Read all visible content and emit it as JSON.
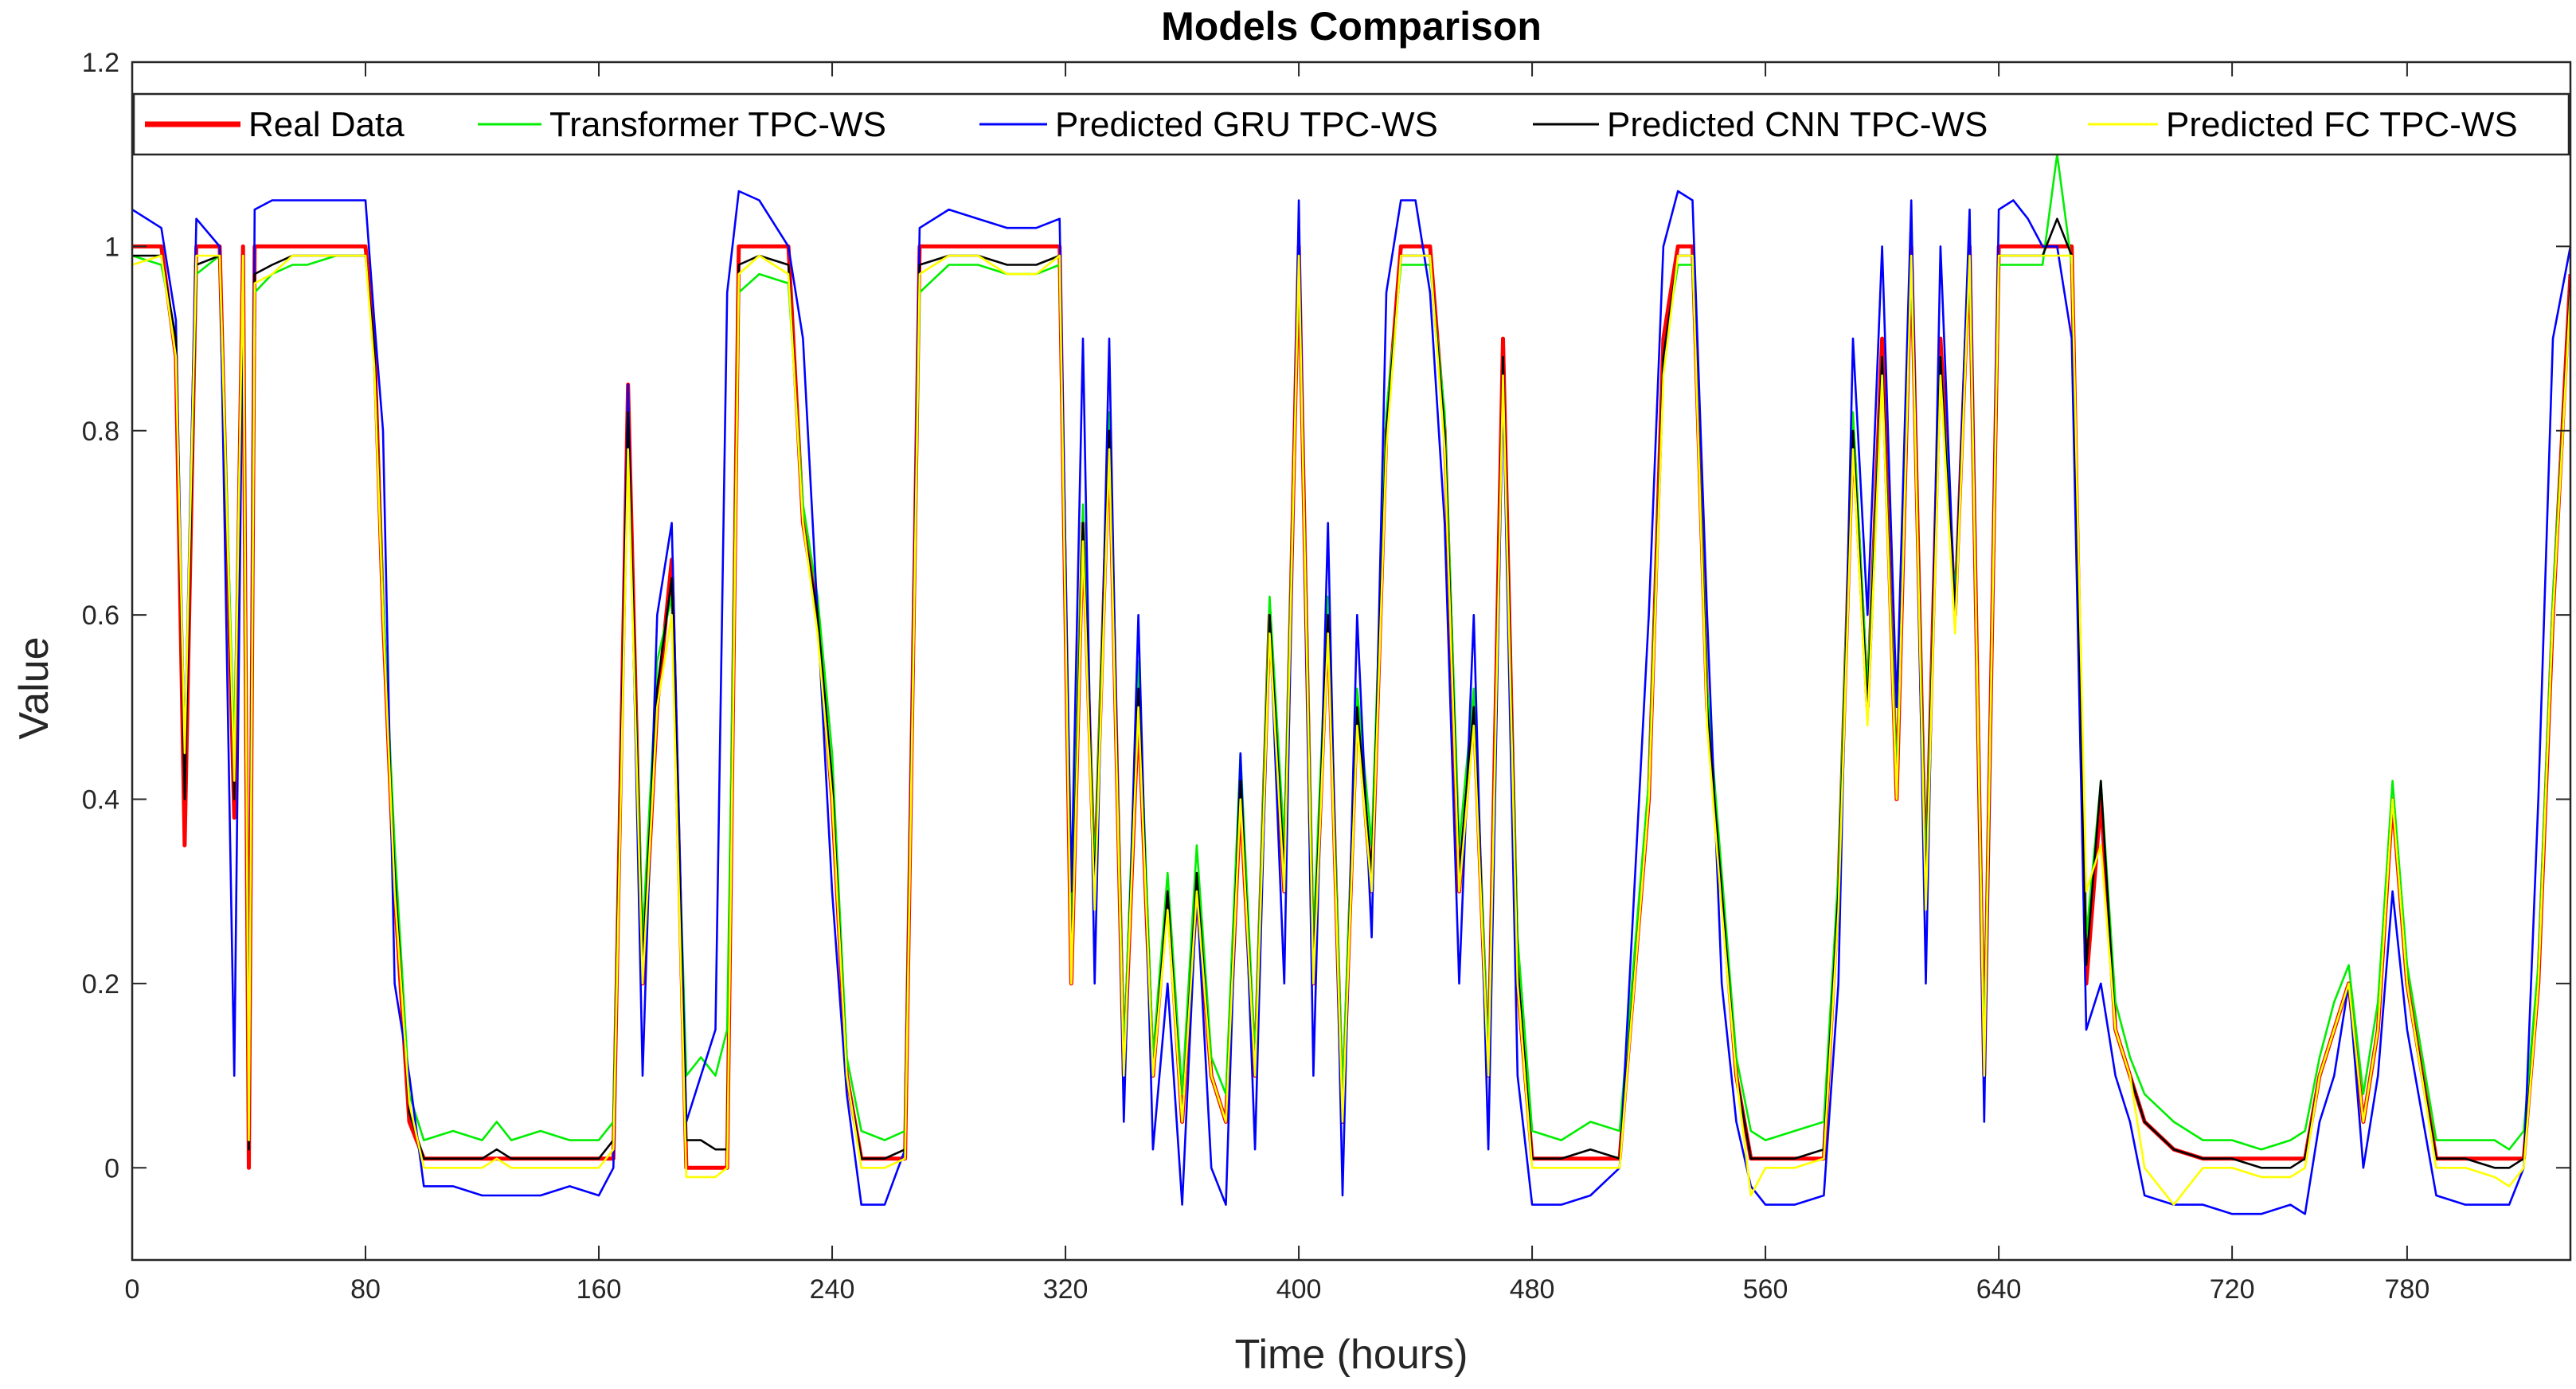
{
  "chart_data": {
    "type": "line",
    "title": "Models Comparison",
    "xlabel": "Time (hours)",
    "ylabel": "Value",
    "xlim": [
      0,
      836
    ],
    "ylim": [
      -0.1,
      1.2
    ],
    "xticks": [
      0,
      80,
      160,
      240,
      320,
      400,
      480,
      560,
      640,
      720,
      780
    ],
    "yticks": [
      0,
      0.2,
      0.4,
      0.6,
      0.8,
      1,
      1.2
    ],
    "xtick_labels": [
      "0",
      "80",
      "160",
      "240",
      "320",
      "400",
      "480",
      "560",
      "640",
      "720",
      "780"
    ],
    "ytick_labels": [
      "0",
      "0.2",
      "0.4",
      "0.6",
      "0.8",
      "1",
      "1.2"
    ],
    "grid": false,
    "legend_position": "top",
    "x": [
      0,
      10,
      15,
      18,
      22,
      30,
      35,
      38,
      40,
      42,
      48,
      55,
      60,
      70,
      80,
      83,
      86,
      90,
      95,
      100,
      110,
      120,
      125,
      130,
      140,
      150,
      160,
      165,
      170,
      175,
      180,
      185,
      190,
      195,
      200,
      204,
      208,
      215,
      225,
      230,
      235,
      240,
      245,
      250,
      258,
      265,
      270,
      280,
      290,
      300,
      310,
      318,
      322,
      326,
      330,
      335,
      340,
      345,
      350,
      355,
      360,
      365,
      370,
      375,
      380,
      385,
      390,
      395,
      400,
      405,
      410,
      415,
      420,
      425,
      430,
      435,
      440,
      445,
      450,
      455,
      460,
      465,
      470,
      475,
      480,
      490,
      500,
      510,
      520,
      525,
      530,
      535,
      540,
      545,
      550,
      555,
      560,
      570,
      580,
      585,
      590,
      595,
      600,
      605,
      610,
      615,
      620,
      625,
      630,
      635,
      640,
      645,
      650,
      655,
      660,
      665,
      670,
      675,
      680,
      685,
      690,
      700,
      710,
      720,
      730,
      740,
      745,
      750,
      755,
      760,
      765,
      770,
      775,
      780,
      790,
      800,
      810,
      815,
      820,
      825,
      830,
      836
    ],
    "series": [
      {
        "name": "Real Data",
        "color": "#ff0000",
        "values": [
          1,
          1,
          0.88,
          0.35,
          1,
          1,
          0.38,
          1,
          0,
          1,
          1,
          1,
          1,
          1,
          1,
          0.9,
          0.6,
          0.3,
          0.05,
          0.01,
          0.01,
          0.01,
          0.01,
          0.01,
          0.01,
          0.01,
          0.01,
          0.01,
          0.85,
          0.2,
          0.5,
          0.66,
          0,
          0,
          0,
          0,
          1,
          1,
          1,
          0.7,
          0.6,
          0.4,
          0.1,
          0.01,
          0.01,
          0.01,
          1,
          1,
          1,
          1,
          1,
          1,
          0.2,
          0.7,
          0.3,
          0.8,
          0.1,
          0.5,
          0.1,
          0.3,
          0.05,
          0.3,
          0.1,
          0.05,
          0.4,
          0.1,
          0.6,
          0.3,
          1,
          0.2,
          0.6,
          0.05,
          0.5,
          0.3,
          0.8,
          1,
          1,
          1,
          0.8,
          0.3,
          0.5,
          0.1,
          0.9,
          0.2,
          0.01,
          0.01,
          0.01,
          0.01,
          0.4,
          0.9,
          1,
          1,
          0.5,
          0.3,
          0.1,
          0.01,
          0.01,
          0.01,
          0.01,
          0.3,
          0.8,
          0.5,
          0.9,
          0.4,
          1,
          0.3,
          0.9,
          0.6,
          1,
          0.1,
          1,
          1,
          1,
          1,
          1,
          1,
          0.2,
          0.4,
          0.15,
          0.1,
          0.05,
          0.02,
          0.01,
          0.01,
          0.01,
          0.01,
          0.01,
          0.1,
          0.15,
          0.2,
          0.05,
          0.15,
          0.4,
          0.2,
          0.01,
          0.01,
          0.01,
          0.01,
          0.01,
          0.2,
          0.6,
          0.97
        ]
      },
      {
        "name": "Transformer TPC-WS",
        "color": "#00ee00",
        "values": [
          0.99,
          0.98,
          0.9,
          0.42,
          0.97,
          0.99,
          0.45,
          0.98,
          0.05,
          0.95,
          0.97,
          0.98,
          0.98,
          0.99,
          0.99,
          0.88,
          0.62,
          0.35,
          0.08,
          0.03,
          0.04,
          0.03,
          0.05,
          0.03,
          0.04,
          0.03,
          0.03,
          0.05,
          0.8,
          0.25,
          0.55,
          0.62,
          0.1,
          0.12,
          0.1,
          0.15,
          0.95,
          0.97,
          0.96,
          0.72,
          0.62,
          0.45,
          0.12,
          0.04,
          0.03,
          0.04,
          0.95,
          0.98,
          0.98,
          0.97,
          0.97,
          0.98,
          0.25,
          0.72,
          0.32,
          0.82,
          0.12,
          0.55,
          0.12,
          0.32,
          0.08,
          0.35,
          0.12,
          0.08,
          0.45,
          0.12,
          0.62,
          0.35,
          0.98,
          0.25,
          0.62,
          0.08,
          0.52,
          0.35,
          0.82,
          0.98,
          0.98,
          0.98,
          0.82,
          0.35,
          0.52,
          0.12,
          0.85,
          0.25,
          0.04,
          0.03,
          0.05,
          0.04,
          0.42,
          0.88,
          0.98,
          0.98,
          0.52,
          0.32,
          0.12,
          0.04,
          0.03,
          0.04,
          0.05,
          0.32,
          0.82,
          0.52,
          0.88,
          0.42,
          0.98,
          0.32,
          0.88,
          0.62,
          0.98,
          0.12,
          0.98,
          0.98,
          0.98,
          0.98,
          1.1,
          0.98,
          0.25,
          0.42,
          0.18,
          0.12,
          0.08,
          0.05,
          0.03,
          0.03,
          0.02,
          0.03,
          0.04,
          0.12,
          0.18,
          0.22,
          0.08,
          0.18,
          0.42,
          0.22,
          0.03,
          0.03,
          0.03,
          0.02,
          0.04,
          0.22,
          0.62,
          0.95
        ]
      },
      {
        "name": "Predicted GRU TPC-WS",
        "color": "#0000ff",
        "values": [
          1.04,
          1.02,
          0.92,
          0.45,
          1.03,
          1.0,
          0.1,
          0.95,
          0.05,
          1.04,
          1.05,
          1.05,
          1.05,
          1.05,
          1.05,
          0.92,
          0.8,
          0.2,
          0.1,
          -0.02,
          -0.02,
          -0.03,
          -0.03,
          -0.03,
          -0.03,
          -0.02,
          -0.03,
          0.0,
          0.85,
          0.1,
          0.6,
          0.7,
          0.05,
          0.1,
          0.15,
          0.95,
          1.06,
          1.05,
          1.0,
          0.9,
          0.6,
          0.3,
          0.08,
          -0.04,
          -0.04,
          0.02,
          1.02,
          1.04,
          1.03,
          1.02,
          1.02,
          1.03,
          0.3,
          0.9,
          0.2,
          0.9,
          0.05,
          0.6,
          0.02,
          0.2,
          -0.04,
          0.3,
          0.0,
          -0.04,
          0.45,
          0.02,
          0.6,
          0.2,
          1.05,
          0.1,
          0.7,
          -0.03,
          0.6,
          0.25,
          0.95,
          1.05,
          1.05,
          0.95,
          0.7,
          0.2,
          0.6,
          0.02,
          0.85,
          0.1,
          -0.04,
          -0.04,
          -0.03,
          0.0,
          0.6,
          1.0,
          1.06,
          1.05,
          0.6,
          0.2,
          0.05,
          -0.02,
          -0.04,
          -0.04,
          -0.03,
          0.2,
          0.9,
          0.6,
          1.0,
          0.5,
          1.05,
          0.2,
          1.0,
          0.6,
          1.04,
          0.05,
          1.04,
          1.05,
          1.03,
          1.0,
          1.0,
          0.9,
          0.15,
          0.2,
          0.1,
          0.05,
          -0.03,
          -0.04,
          -0.04,
          -0.05,
          -0.05,
          -0.04,
          -0.05,
          0.05,
          0.1,
          0.2,
          0.0,
          0.1,
          0.3,
          0.15,
          -0.03,
          -0.04,
          -0.04,
          -0.04,
          0.0,
          0.4,
          0.9,
          1.0
        ]
      },
      {
        "name": "Predicted CNN TPC-WS",
        "color": "#000000",
        "values": [
          0.99,
          0.99,
          0.9,
          0.4,
          0.98,
          0.99,
          0.4,
          0.99,
          0.02,
          0.97,
          0.98,
          0.99,
          0.99,
          0.99,
          0.99,
          0.89,
          0.6,
          0.32,
          0.06,
          0.01,
          0.01,
          0.01,
          0.02,
          0.01,
          0.01,
          0.01,
          0.01,
          0.03,
          0.82,
          0.22,
          0.52,
          0.64,
          0.03,
          0.03,
          0.02,
          0.02,
          0.98,
          0.99,
          0.98,
          0.7,
          0.6,
          0.42,
          0.1,
          0.01,
          0.01,
          0.02,
          0.98,
          0.99,
          0.99,
          0.98,
          0.98,
          0.99,
          0.22,
          0.7,
          0.3,
          0.8,
          0.1,
          0.52,
          0.1,
          0.3,
          0.05,
          0.32,
          0.1,
          0.05,
          0.42,
          0.1,
          0.6,
          0.32,
          0.99,
          0.22,
          0.6,
          0.05,
          0.5,
          0.32,
          0.8,
          0.99,
          0.99,
          0.99,
          0.8,
          0.32,
          0.5,
          0.1,
          0.88,
          0.22,
          0.01,
          0.01,
          0.02,
          0.01,
          0.4,
          0.88,
          0.99,
          0.99,
          0.5,
          0.3,
          0.1,
          0.01,
          0.01,
          0.01,
          0.02,
          0.3,
          0.8,
          0.5,
          0.88,
          0.4,
          0.99,
          0.3,
          0.88,
          0.6,
          0.99,
          0.1,
          0.99,
          0.99,
          0.99,
          0.99,
          1.03,
          0.99,
          0.22,
          0.42,
          0.15,
          0.1,
          0.05,
          0.02,
          0.01,
          0.01,
          0.0,
          0.0,
          0.01,
          0.1,
          0.15,
          0.2,
          0.05,
          0.15,
          0.4,
          0.2,
          0.01,
          0.01,
          0.0,
          0.0,
          0.01,
          0.2,
          0.6,
          0.96
        ]
      },
      {
        "name": "Predicted FC TPC-WS",
        "color": "#ffff00",
        "values": [
          0.98,
          0.99,
          0.88,
          0.45,
          0.99,
          0.99,
          0.42,
          0.99,
          0.03,
          0.96,
          0.97,
          0.99,
          0.99,
          0.99,
          0.99,
          0.87,
          0.6,
          0.3,
          0.07,
          0.0,
          0.0,
          0.0,
          0.01,
          0.0,
          0.0,
          0.0,
          0.0,
          0.02,
          0.78,
          0.2,
          0.5,
          0.6,
          -0.01,
          -0.01,
          -0.01,
          0.0,
          0.97,
          0.99,
          0.97,
          0.7,
          0.58,
          0.4,
          0.1,
          0.0,
          0.0,
          0.01,
          0.97,
          0.99,
          0.99,
          0.97,
          0.97,
          0.99,
          0.2,
          0.68,
          0.28,
          0.78,
          0.1,
          0.5,
          0.1,
          0.28,
          0.05,
          0.3,
          0.1,
          0.05,
          0.4,
          0.1,
          0.58,
          0.3,
          0.99,
          0.2,
          0.58,
          0.05,
          0.48,
          0.3,
          0.78,
          0.99,
          0.99,
          0.99,
          0.78,
          0.3,
          0.48,
          0.1,
          0.86,
          0.2,
          0.0,
          0.0,
          0.0,
          0.0,
          0.4,
          0.86,
          0.99,
          0.99,
          0.48,
          0.28,
          0.1,
          -0.03,
          0.0,
          0.0,
          0.01,
          0.28,
          0.78,
          0.48,
          0.86,
          0.4,
          0.99,
          0.28,
          0.86,
          0.58,
          0.99,
          0.1,
          0.99,
          0.99,
          0.99,
          0.99,
          0.99,
          0.99,
          0.3,
          0.35,
          0.15,
          0.1,
          0.0,
          -0.04,
          0.0,
          0.0,
          -0.01,
          -0.01,
          0.0,
          0.1,
          0.15,
          0.2,
          0.05,
          0.15,
          0.4,
          0.2,
          0.0,
          0.0,
          -0.01,
          -0.02,
          0.0,
          0.2,
          0.6,
          0.95
        ]
      }
    ]
  }
}
